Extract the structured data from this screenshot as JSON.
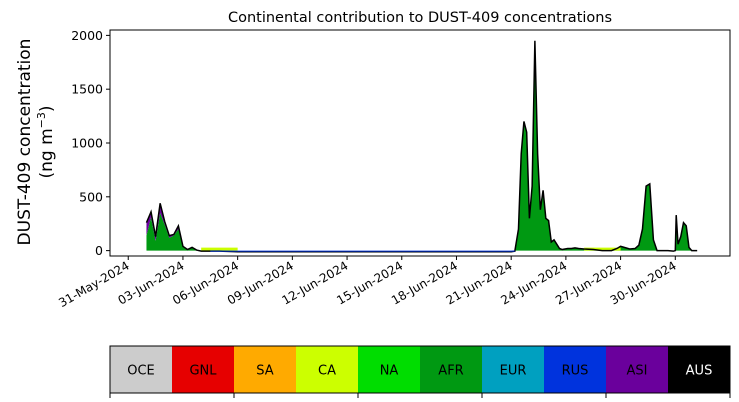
{
  "chart_data": {
    "type": "area",
    "title": "Continental contribution to DUST-409 concentrations",
    "ylabel_line1": "DUST-409 concentration",
    "ylabel_line2_prefix": "(ng m",
    "ylabel_line2_sup": "−3",
    "ylabel_line2_suffix": ")",
    "xlabel": "",
    "ylim": [
      -50,
      2050
    ],
    "yticks": [
      0,
      500,
      1000,
      1500,
      2000
    ],
    "xlim_days": [
      -1.0,
      33.0
    ],
    "xtick_labels": [
      "31-May-2024",
      "03-Jun-2024",
      "06-Jun-2024",
      "09-Jun-2024",
      "12-Jun-2024",
      "15-Jun-2024",
      "18-Jun-2024",
      "21-Jun-2024",
      "24-Jun-2024",
      "27-Jun-2024",
      "30-Jun-2024"
    ],
    "xtick_days": [
      0,
      3,
      6,
      9,
      12,
      15,
      18,
      21,
      24,
      27,
      30
    ],
    "grid": false,
    "x_days": [
      1.0,
      1.25,
      1.5,
      1.75,
      2.0,
      2.25,
      2.5,
      2.75,
      3.0,
      3.25,
      3.5,
      3.75,
      4.0,
      4.5,
      5.0,
      6.0,
      8.0,
      10.0,
      12.0,
      14.0,
      16.0,
      18.0,
      20.0,
      21.0,
      21.2,
      21.4,
      21.55,
      21.7,
      21.85,
      22.0,
      22.15,
      22.3,
      22.45,
      22.6,
      22.75,
      22.9,
      23.05,
      23.2,
      23.35,
      23.5,
      23.65,
      23.8,
      23.95,
      24.1,
      24.3,
      24.5,
      24.7,
      25.0,
      25.5,
      26.0,
      26.5,
      26.8,
      27.0,
      27.2,
      27.5,
      27.8,
      28.0,
      28.2,
      28.4,
      28.6,
      28.8,
      29.0,
      29.3,
      29.6,
      29.9,
      30.0,
      30.05,
      30.15,
      30.3,
      30.45,
      30.6,
      30.75,
      30.9,
      31.0,
      31.2
    ],
    "total": [
      260,
      360,
      130,
      440,
      270,
      140,
      150,
      230,
      40,
      10,
      30,
      5,
      -5,
      -5,
      -5,
      -10,
      -10,
      -10,
      -10,
      -10,
      -10,
      -10,
      -10,
      -10,
      -5,
      200,
      900,
      1200,
      1100,
      300,
      600,
      1950,
      900,
      380,
      560,
      300,
      280,
      80,
      100,
      60,
      20,
      10,
      15,
      20,
      20,
      25,
      20,
      15,
      10,
      0,
      0,
      20,
      40,
      30,
      15,
      20,
      50,
      200,
      600,
      620,
      100,
      0,
      0,
      0,
      -5,
      0,
      330,
      60,
      130,
      260,
      230,
      30,
      0,
      0,
      0
    ],
    "asi": [
      120,
      50,
      40,
      90,
      30,
      20,
      10,
      30,
      0,
      0,
      0,
      0,
      0,
      0,
      0,
      0,
      0,
      0,
      0,
      0,
      0,
      0,
      0,
      0,
      0,
      0,
      0,
      0,
      0,
      0,
      0,
      10,
      0,
      0,
      0,
      0,
      0,
      0,
      0,
      0,
      0,
      0,
      0,
      0,
      0,
      0,
      0,
      0,
      0,
      0,
      0,
      0,
      0,
      0,
      0,
      0,
      0,
      0,
      0,
      0,
      0,
      0,
      0,
      0,
      0,
      0,
      0,
      0,
      0,
      0,
      0,
      0,
      0,
      0,
      0
    ],
    "series_colors": {
      "total": "#000000",
      "afr": "#009912",
      "asi": "#6a009c",
      "rus": "#0033dd",
      "ca": "#ccff00"
    },
    "legend": [
      {
        "label": "OCE",
        "color": "#cccccc"
      },
      {
        "label": "GNL",
        "color": "#e60000"
      },
      {
        "label": "SA",
        "color": "#ffaa00"
      },
      {
        "label": "CA",
        "color": "#ccff00"
      },
      {
        "label": "NA",
        "color": "#00dd00"
      },
      {
        "label": "AFR",
        "color": "#009912"
      },
      {
        "label": "EUR",
        "color": "#00a0c0"
      },
      {
        "label": "RUS",
        "color": "#0033dd"
      },
      {
        "label": "ASI",
        "color": "#6a009c"
      },
      {
        "label": "AUS",
        "color": "#000000"
      }
    ]
  }
}
